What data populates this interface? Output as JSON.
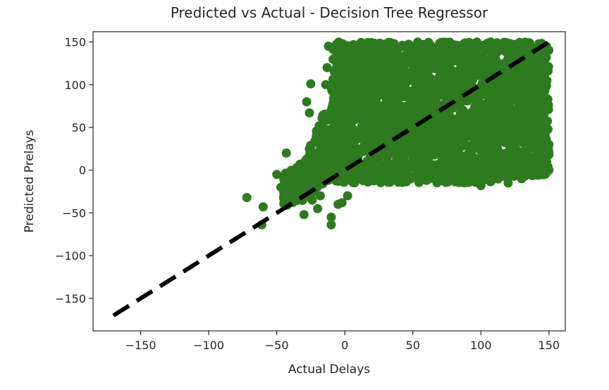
{
  "chart_data": {
    "type": "scatter",
    "title": "Predicted vs Actual - Decision Tree Regressor",
    "xlabel": "Actual Delays",
    "ylabel": "Predicted Prelays",
    "xlim": [
      -185,
      162
    ],
    "ylim": [
      -188,
      162
    ],
    "xticks": [
      -150,
      -100,
      -50,
      0,
      50,
      100,
      150
    ],
    "yticks": [
      -150,
      -100,
      -50,
      0,
      50,
      100,
      150
    ],
    "xtick_labels": [
      "−150",
      "−100",
      "−50",
      "0",
      "50",
      "100",
      "150"
    ],
    "ytick_labels": [
      "−150",
      "−100",
      "−50",
      "0",
      "50",
      "100",
      "150"
    ],
    "grid": false,
    "marker_color": "#2e7a1f",
    "reference_line": {
      "from": [
        -170,
        -170
      ],
      "to": [
        150,
        150
      ],
      "style": "dashed",
      "color": "#000000"
    },
    "dense_regions": [
      {
        "description_x": [
          -10,
          150
        ],
        "y_min_at_x": [
          [
            -10,
            -12
          ],
          [
            0,
            -15
          ],
          [
            50,
            -15
          ],
          [
            100,
            -15
          ],
          [
            150,
            -5
          ]
        ],
        "y_max": 150
      },
      {
        "description_x": [
          -45,
          -10
        ],
        "y_min_at_x": [
          [
            -45,
            -42
          ],
          [
            -30,
            -35
          ],
          [
            -10,
            -15
          ]
        ],
        "y_max_at_x": [
          [
            -45,
            -5
          ],
          [
            -30,
            10
          ],
          [
            -10,
            90
          ]
        ]
      }
    ],
    "outliers": [
      [
        -72,
        -32
      ],
      [
        -60,
        -43
      ],
      [
        -61,
        -64
      ],
      [
        -43,
        20
      ],
      [
        -30,
        -52
      ],
      [
        -28,
        80
      ],
      [
        -26,
        67
      ],
      [
        -25,
        101
      ],
      [
        -24,
        -35
      ],
      [
        -20,
        -45
      ],
      [
        -18,
        -30
      ],
      [
        -10,
        -64
      ],
      [
        -10,
        -55
      ],
      [
        -5,
        -40
      ],
      [
        -2,
        -38
      ],
      [
        2,
        -30
      ],
      [
        -50,
        -5
      ],
      [
        -47,
        -20
      ],
      [
        -40,
        -10
      ],
      [
        -35,
        -25
      ],
      [
        -22,
        17
      ],
      [
        -15,
        40
      ],
      [
        -12,
        60
      ],
      [
        -14,
        100
      ],
      [
        -13,
        120
      ],
      [
        -12,
        145
      ],
      [
        18,
        140
      ],
      [
        25,
        130
      ],
      [
        140,
        -5
      ],
      [
        145,
        15
      ],
      [
        148,
        50
      ],
      [
        150,
        0
      ],
      [
        130,
        -10
      ],
      [
        120,
        -15
      ],
      [
        100,
        -18
      ],
      [
        80,
        -10
      ],
      [
        60,
        -12
      ],
      [
        150,
        30
      ]
    ]
  }
}
